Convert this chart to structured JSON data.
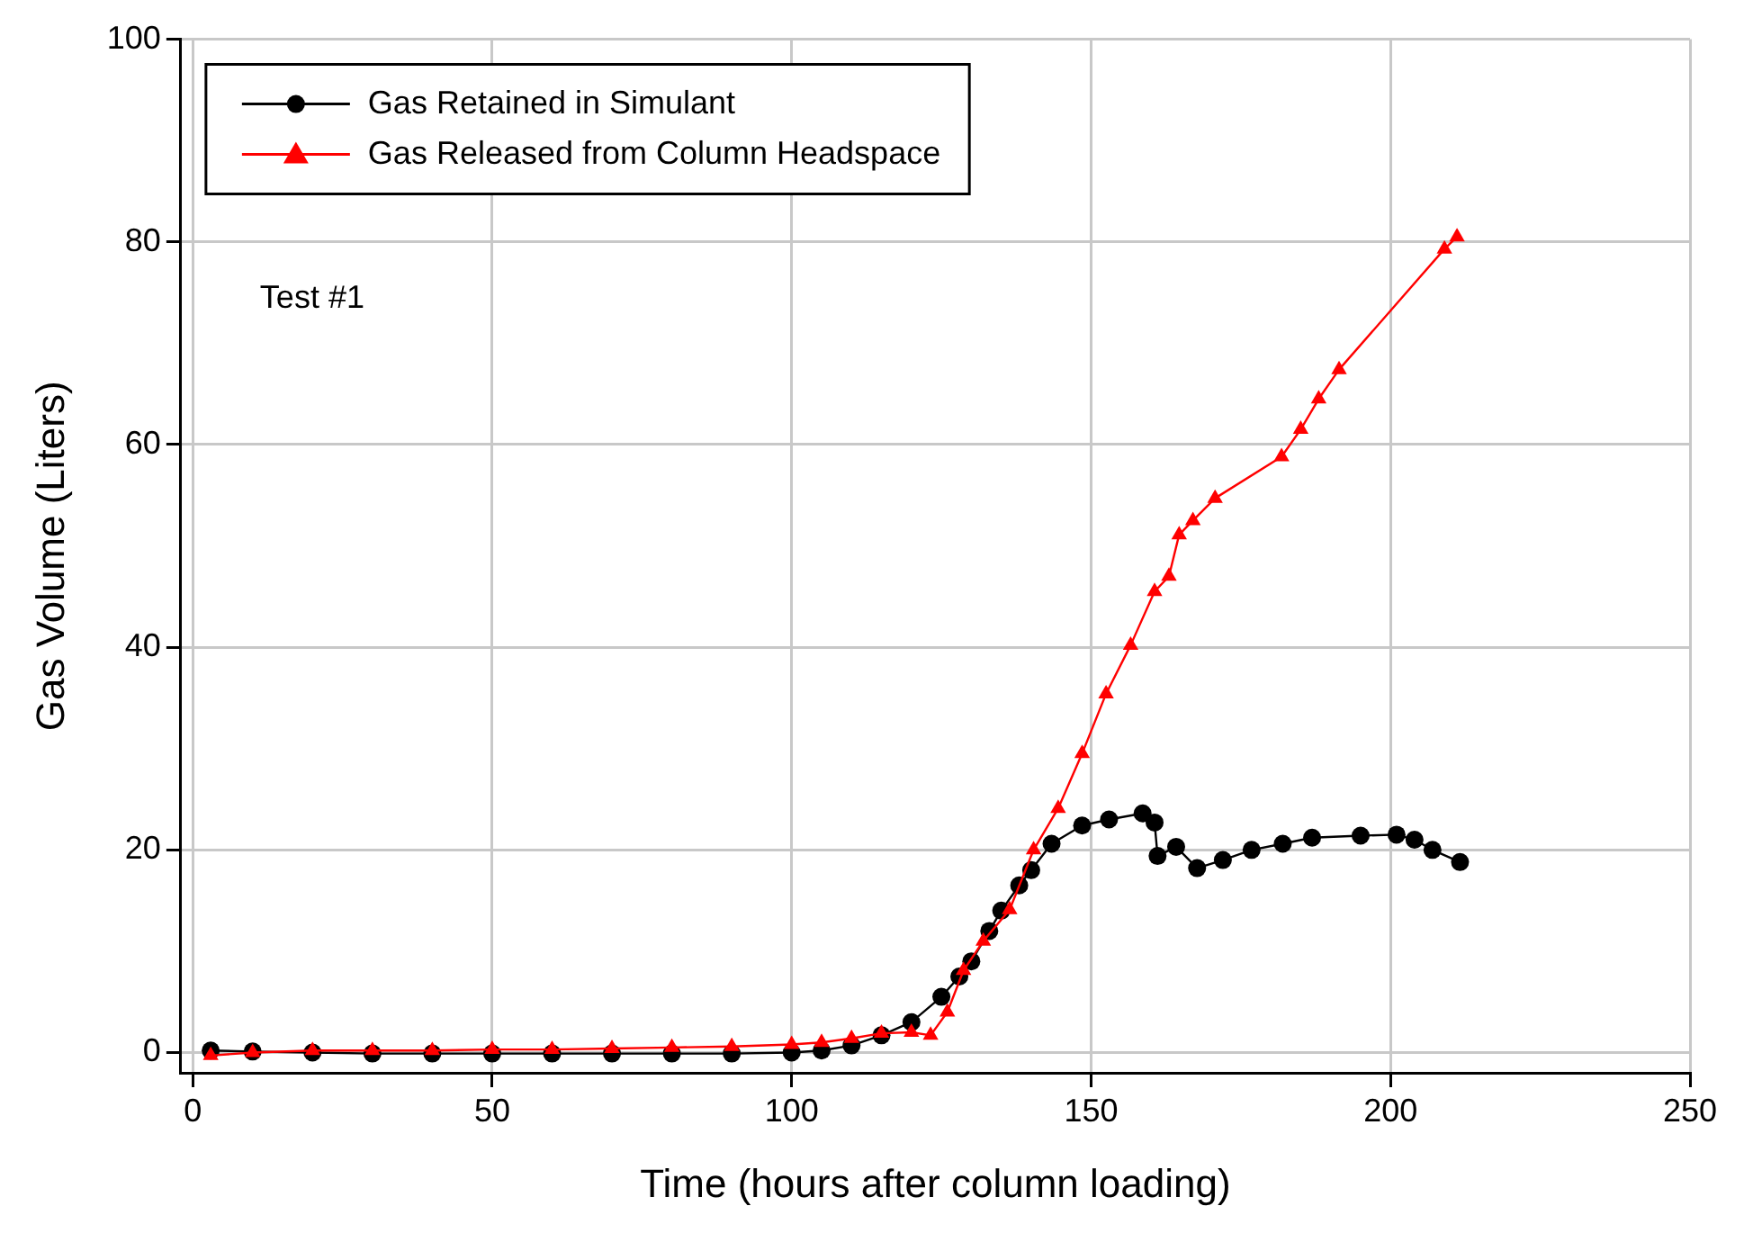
{
  "chart_data": {
    "type": "line",
    "xlabel": "Time (hours after column loading)",
    "ylabel": "Gas Volume (Liters)",
    "xlim": [
      -2,
      250
    ],
    "xticks": [
      0,
      50,
      100,
      150,
      200,
      250
    ],
    "ylim": [
      -2,
      100
    ],
    "yticks": [
      0,
      20,
      40,
      60,
      80,
      100
    ],
    "grid": true,
    "legend": "top left",
    "annotations": [
      "Test #1"
    ],
    "series": [
      {
        "name": "Gas Retained in Simulant",
        "color": "#000000",
        "marker": "circle",
        "x": [
          3,
          10,
          20,
          30,
          40,
          50,
          60,
          70,
          80,
          90,
          100,
          105,
          110,
          115,
          120,
          125,
          128,
          130,
          133,
          135,
          138,
          140,
          143.4,
          148.5,
          153,
          158.6,
          160.6,
          161.1,
          164.2,
          167.7,
          172,
          176.8,
          182,
          186.9,
          195,
          201,
          204,
          207,
          211.6
        ],
        "values": [
          0.2,
          0.1,
          0,
          -0.1,
          -0.1,
          -0.1,
          -0.1,
          -0.1,
          -0.1,
          -0.1,
          0,
          0.2,
          0.7,
          1.7,
          3,
          5.5,
          7.5,
          9,
          12,
          14,
          16.5,
          18,
          20.6,
          22.4,
          23,
          23.6,
          22.7,
          19.4,
          20.3,
          18.2,
          19,
          20,
          20.6,
          21.2,
          21.4,
          21.5,
          21,
          20,
          18.8
        ]
      },
      {
        "name": "Gas Released from Column Headspace",
        "color": "#ff0000",
        "marker": "triangle",
        "x": [
          3,
          10,
          20,
          30,
          40,
          50,
          60,
          70,
          80,
          90,
          100,
          105,
          110,
          115,
          120,
          123.2,
          126,
          128.7,
          132,
          136.4,
          140.4,
          144.5,
          148.5,
          152.5,
          156.6,
          160.6,
          163,
          164.7,
          167,
          170.7,
          181.8,
          185,
          188,
          191.4,
          209,
          211.1
        ],
        "values": [
          -0.3,
          0,
          0.2,
          0.2,
          0.2,
          0.3,
          0.3,
          0.4,
          0.5,
          0.6,
          0.8,
          1,
          1.4,
          1.9,
          2,
          1.7,
          4,
          8.1,
          11,
          14.1,
          20,
          24.1,
          29.5,
          35.4,
          40.2,
          45.5,
          47,
          51.1,
          52.5,
          54.7,
          58.8,
          61.5,
          64.5,
          67.4,
          79.3,
          80.5
        ]
      }
    ]
  }
}
